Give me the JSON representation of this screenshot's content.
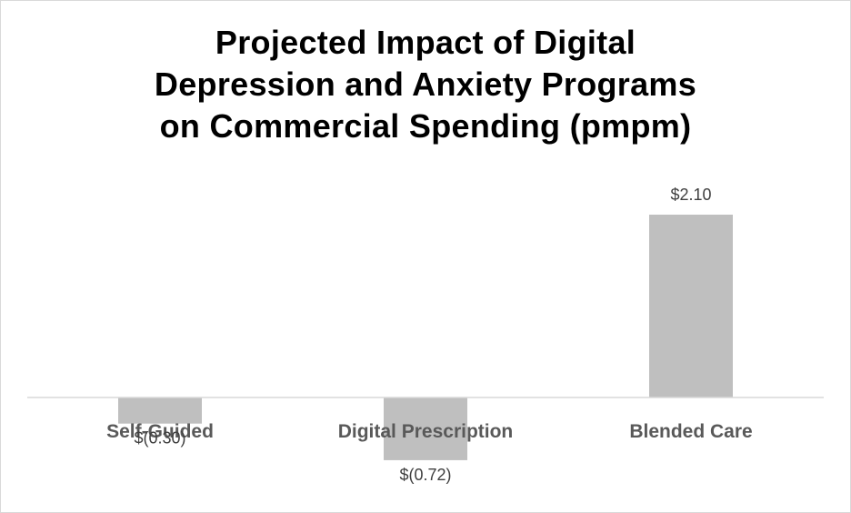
{
  "chart_data": {
    "type": "bar",
    "title": "Projected Impact of Digital Depression and Anxiety Programs on Commercial Spending (pmpm)",
    "title_lines": [
      "Projected Impact of Digital",
      "Depression and Anxiety Programs",
      "on Commercial Spending (pmpm)"
    ],
    "categories": [
      "Self-Guided",
      "Digital Prescription",
      "Blended Care"
    ],
    "values": [
      -0.3,
      -0.72,
      2.1
    ],
    "data_labels": [
      "$(0.30)",
      "$(0.72)",
      "$2.10"
    ],
    "xlabel": "",
    "ylabel": "",
    "grid": false,
    "legend": "none",
    "colors": {
      "bar": "#bfbfbf",
      "axis": "#d9d9d9",
      "category_label": "#595959",
      "data_label": "#404040",
      "title": "#000000"
    }
  }
}
